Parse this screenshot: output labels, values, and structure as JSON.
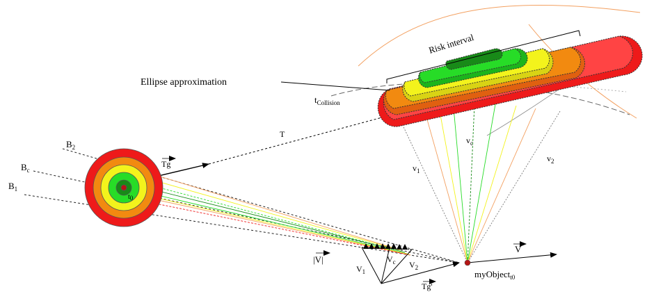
{
  "labels": {
    "ellipse": "Ellipse approximation",
    "risk_interval": "Risk interval",
    "t_base": "t",
    "t_sub": "Collision",
    "T": "T",
    "Tg": "Tg",
    "Tg_prime": "Tg'",
    "B": "B",
    "B2_sub": "2",
    "Bc_sub": "c",
    "B1_sub": "1",
    "t_origin_base": "t",
    "t_origin_sub": "0",
    "v": "v",
    "v1_sub": "1",
    "vc_sub": "c",
    "v2_sub": "2",
    "V": "V",
    "V1_sub": "1",
    "Vc_sub": "c",
    "V2_sub": "2",
    "abs_v": "|V|",
    "V_vec": "V",
    "my_object": "myObject",
    "my_object_sub": "t0"
  },
  "colors": {
    "red": "#ee1a1a",
    "orange": "#f28a10",
    "yellow": "#f3f31c",
    "green": "#27dc27",
    "dark_green": "#188a18",
    "marker": "#b51515"
  }
}
